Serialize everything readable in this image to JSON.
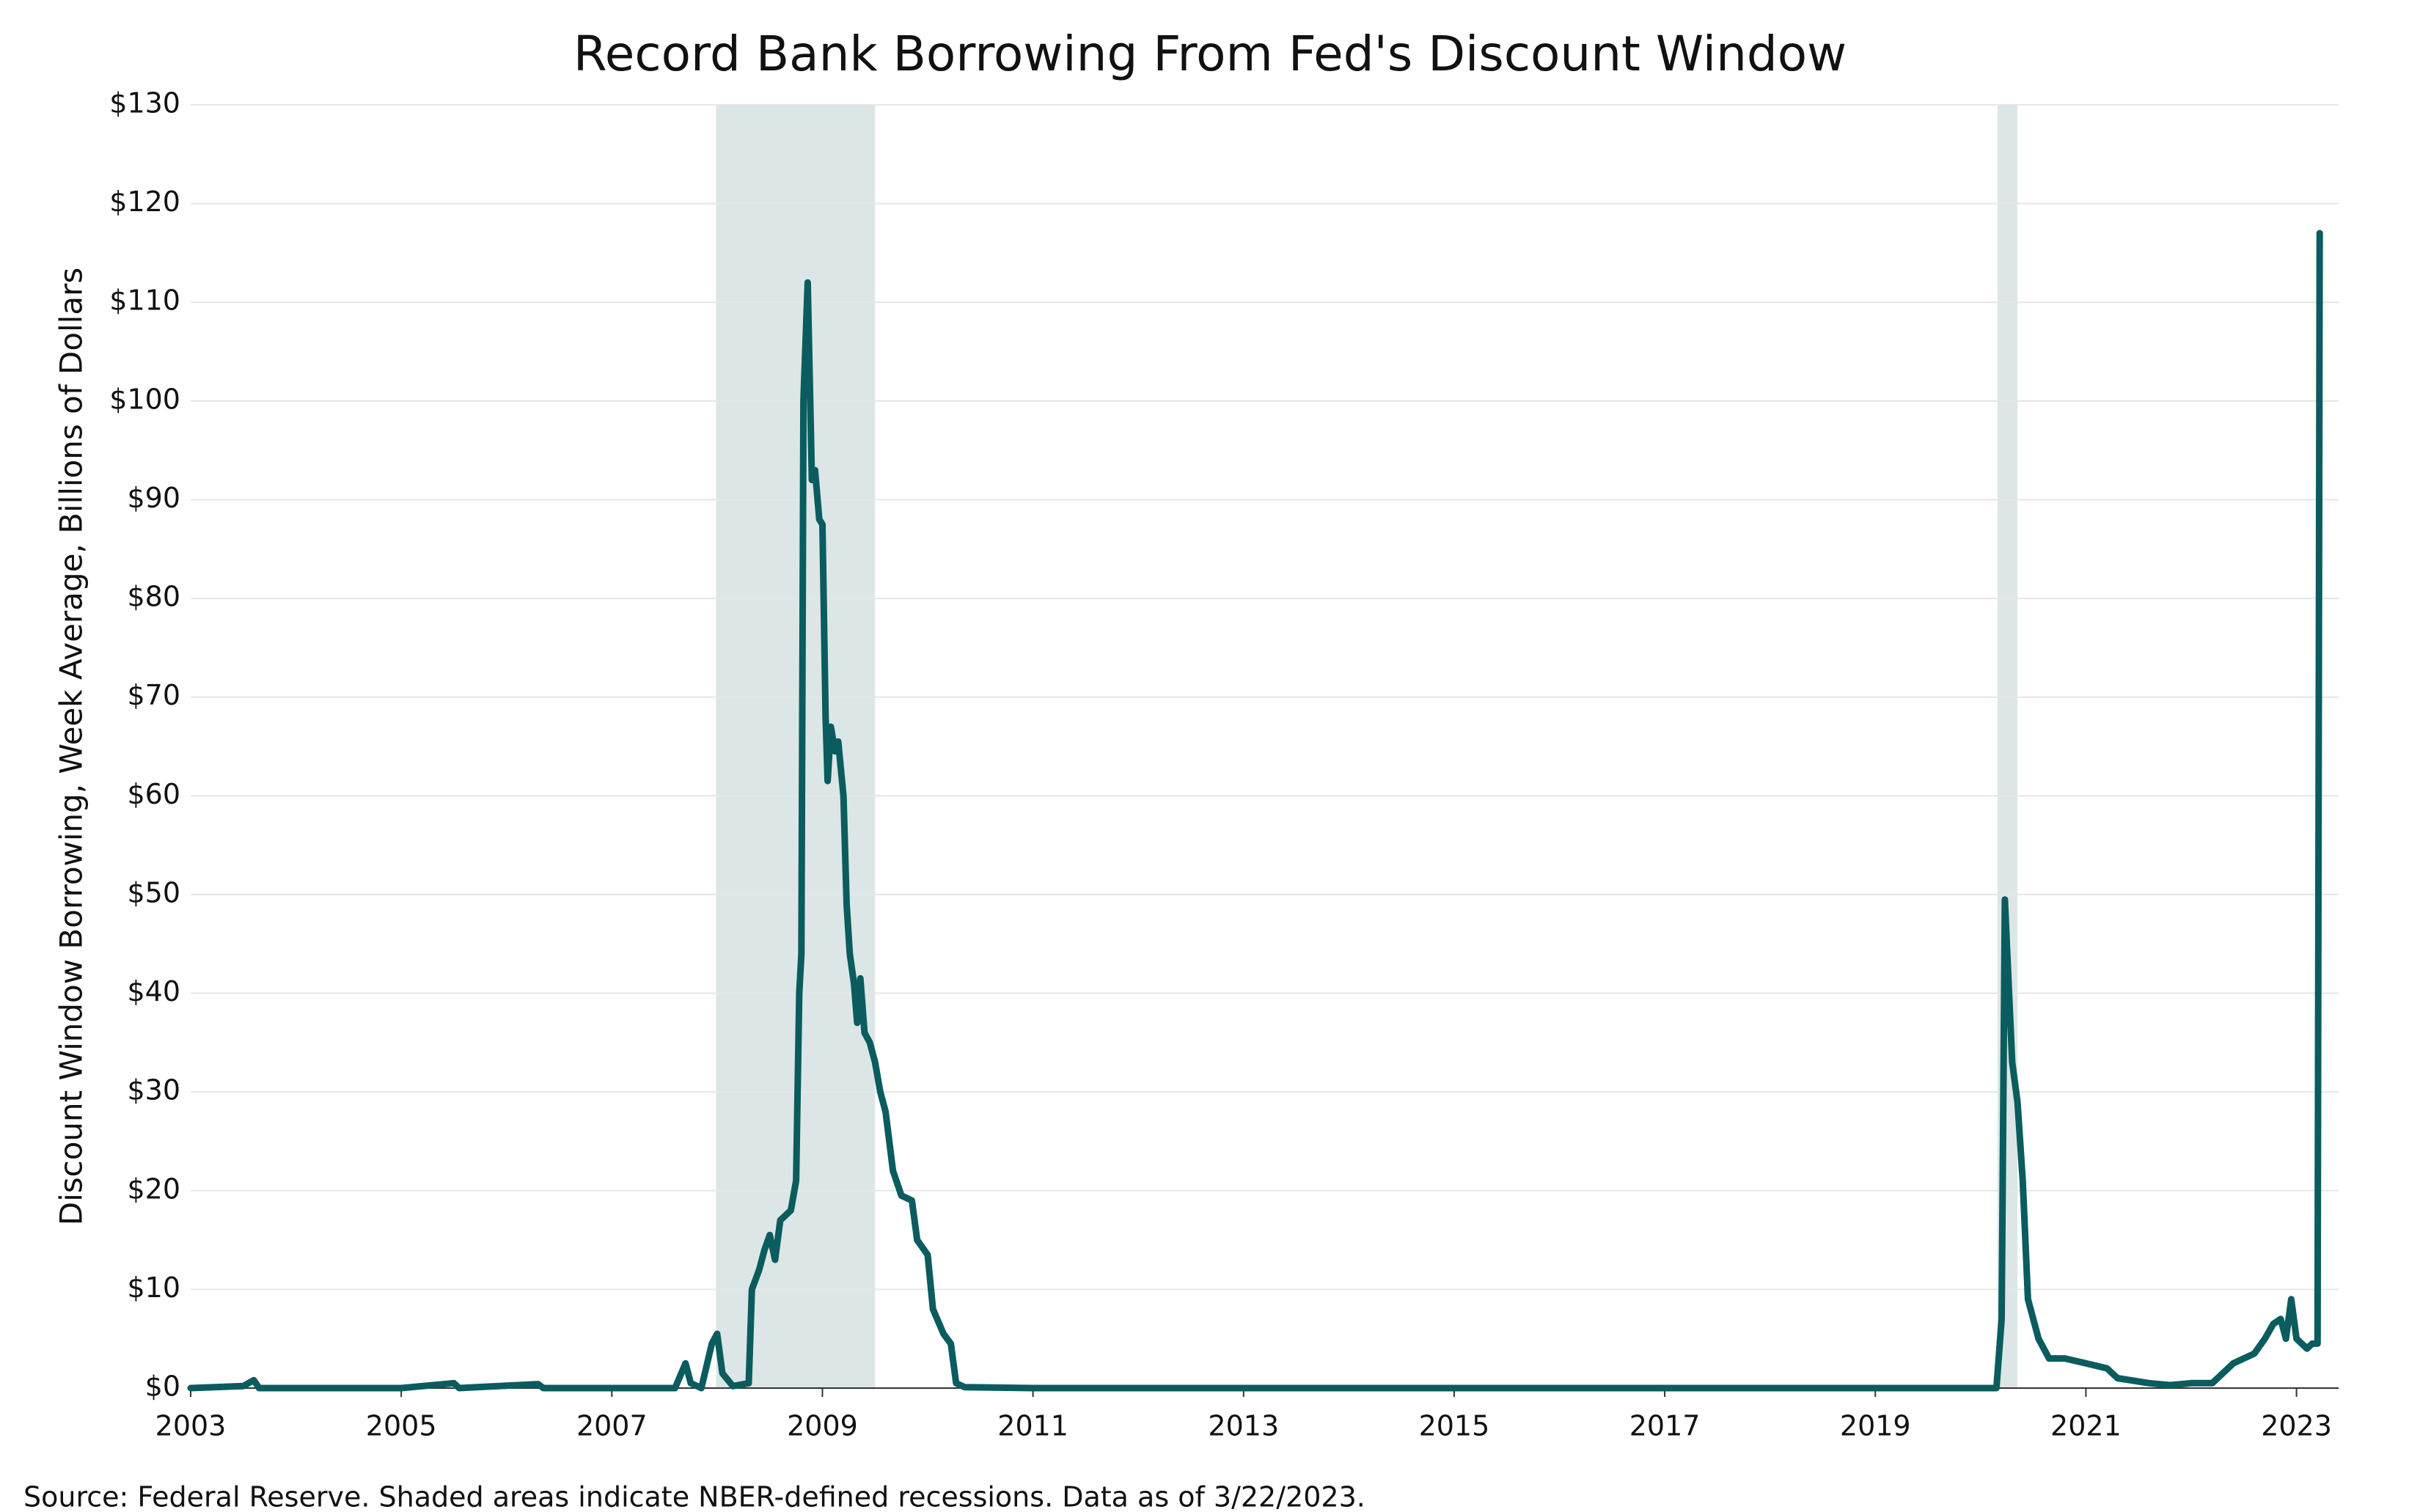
{
  "chart_data": {
    "type": "line",
    "title": "Record Bank Borrowing From Fed's Discount Window",
    "y_label": "Discount Window Borrowing, Week Average, Billions of Dollars",
    "source": "Source: Federal Reserve. Shaded areas indicate NBER-defined recessions. Data as of 3/22/2023.",
    "xlim": [
      2003,
      2023.4
    ],
    "ylim": [
      0,
      130
    ],
    "xticks": [
      2003,
      2005,
      2007,
      2009,
      2011,
      2013,
      2015,
      2017,
      2019,
      2021,
      2023
    ],
    "yticks": [
      {
        "value": 0,
        "label": "$0"
      },
      {
        "value": 10,
        "label": "$10"
      },
      {
        "value": 20,
        "label": "$20"
      },
      {
        "value": 30,
        "label": "$30"
      },
      {
        "value": 40,
        "label": "$40"
      },
      {
        "value": 50,
        "label": "$50"
      },
      {
        "value": 60,
        "label": "$60"
      },
      {
        "value": 70,
        "label": "$70"
      },
      {
        "value": 80,
        "label": "$80"
      },
      {
        "value": 90,
        "label": "$90"
      },
      {
        "value": 100,
        "label": "$100"
      },
      {
        "value": 110,
        "label": "$110"
      },
      {
        "value": 120,
        "label": "$120"
      },
      {
        "value": 130,
        "label": "$130"
      }
    ],
    "grid": true,
    "recessions": [
      [
        2007.99,
        2009.5
      ],
      [
        2020.16,
        2020.35
      ]
    ],
    "recession_color": "#dde6e6",
    "series": [
      {
        "name": "Discount Window Borrowing",
        "color": "#0b5c5e",
        "x": [
          2003,
          2003.5,
          2003.6,
          2003.65,
          2005,
          2005.5,
          2005.55,
          2006.3,
          2006.35,
          2007.6,
          2007.7,
          2007.75,
          2007.85,
          2007.95,
          2008.0,
          2008.05,
          2008.15,
          2008.3,
          2008.33,
          2008.4,
          2008.45,
          2008.5,
          2008.55,
          2008.6,
          2008.7,
          2008.75,
          2008.78,
          2008.8,
          2008.82,
          2008.86,
          2008.9,
          2008.93,
          2008.97,
          2009.0,
          2009.03,
          2009.05,
          2009.08,
          2009.12,
          2009.15,
          2009.2,
          2009.23,
          2009.26,
          2009.3,
          2009.33,
          2009.36,
          2009.4,
          2009.45,
          2009.5,
          2009.55,
          2009.6,
          2009.67,
          2009.75,
          2009.85,
          2009.9,
          2010.0,
          2010.05,
          2010.15,
          2010.22,
          2010.27,
          2010.35,
          2011,
          2015,
          2020.15,
          2020.2,
          2020.23,
          2020.27,
          2020.3,
          2020.35,
          2020.4,
          2020.45,
          2020.55,
          2020.65,
          2020.8,
          2021,
          2021.2,
          2021.3,
          2021.6,
          2021.8,
          2022.0,
          2022.2,
          2022.3,
          2022.4,
          2022.5,
          2022.6,
          2022.7,
          2022.78,
          2022.85,
          2022.9,
          2022.95,
          2023.0,
          2023.1,
          2023.15,
          2023.2,
          2023.22
        ],
        "values": [
          0,
          0.2,
          0.8,
          0,
          0,
          0.5,
          0,
          0.4,
          0,
          0,
          2.5,
          0.5,
          0,
          4.5,
          5.5,
          1.5,
          0.2,
          0.5,
          10,
          12,
          14,
          15.5,
          13,
          17,
          18,
          21,
          40,
          44,
          100,
          112,
          92,
          93,
          88,
          87.5,
          68,
          61.5,
          67,
          64.5,
          65.5,
          60,
          49,
          44,
          41,
          37,
          41.5,
          36,
          35,
          33,
          30,
          28,
          22,
          19.5,
          19,
          15,
          13.5,
          8,
          5.5,
          4.5,
          0.5,
          0.1,
          0,
          0,
          0,
          7,
          49.5,
          40,
          33,
          29,
          21,
          9,
          5,
          3,
          3,
          2.5,
          2,
          1,
          0.5,
          0.3,
          0.5,
          0.5,
          1.5,
          2.5,
          3,
          3.5,
          5,
          6.5,
          7,
          5,
          9,
          5,
          4,
          4.5,
          4.5,
          117
        ]
      }
    ]
  }
}
